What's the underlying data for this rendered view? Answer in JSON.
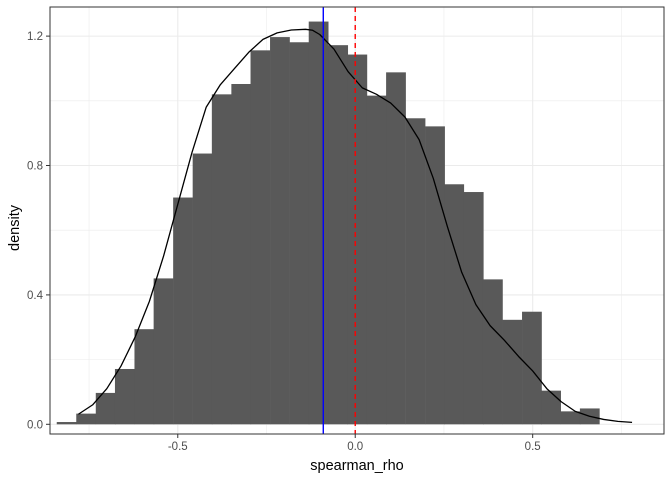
{
  "chart_data": {
    "type": "bar",
    "subtype": "histogram-with-density",
    "xlabel": "spearman_rho",
    "ylabel": "density",
    "xlim": [
      -0.86,
      0.87
    ],
    "ylim": [
      -0.03,
      1.29
    ],
    "x_ticks": [
      {
        "value": -0.5,
        "label": "-0.5"
      },
      {
        "value": 0.0,
        "label": "0.0"
      },
      {
        "value": 0.5,
        "label": "0.5"
      }
    ],
    "y_ticks": [
      {
        "value": 0.0,
        "label": "0.0"
      },
      {
        "value": 0.4,
        "label": "0.4"
      },
      {
        "value": 0.8,
        "label": "0.8"
      },
      {
        "value": 1.2,
        "label": "1.2"
      }
    ],
    "grid": true,
    "bin_width": 0.0546,
    "bins": [
      {
        "x0": -0.841,
        "y": 0.007
      },
      {
        "x0": -0.786,
        "y": 0.033
      },
      {
        "x0": -0.731,
        "y": 0.097
      },
      {
        "x0": -0.677,
        "y": 0.171
      },
      {
        "x0": -0.622,
        "y": 0.294
      },
      {
        "x0": -0.568,
        "y": 0.451
      },
      {
        "x0": -0.513,
        "y": 0.701
      },
      {
        "x0": -0.458,
        "y": 0.837
      },
      {
        "x0": -0.404,
        "y": 1.02
      },
      {
        "x0": -0.349,
        "y": 1.052
      },
      {
        "x0": -0.295,
        "y": 1.156
      },
      {
        "x0": -0.24,
        "y": 1.197
      },
      {
        "x0": -0.185,
        "y": 1.181
      },
      {
        "x0": -0.131,
        "y": 1.245
      },
      {
        "x0": -0.076,
        "y": 1.172
      },
      {
        "x0": -0.022,
        "y": 1.143
      },
      {
        "x0": 0.033,
        "y": 1.016
      },
      {
        "x0": 0.087,
        "y": 1.088
      },
      {
        "x0": 0.142,
        "y": 0.946
      },
      {
        "x0": 0.197,
        "y": 0.921
      },
      {
        "x0": 0.251,
        "y": 0.742
      },
      {
        "x0": 0.306,
        "y": 0.718
      },
      {
        "x0": 0.36,
        "y": 0.448
      },
      {
        "x0": 0.415,
        "y": 0.323
      },
      {
        "x0": 0.47,
        "y": 0.348
      },
      {
        "x0": 0.524,
        "y": 0.104
      },
      {
        "x0": 0.579,
        "y": 0.04
      },
      {
        "x0": 0.633,
        "y": 0.049
      }
    ],
    "density_curve": {
      "x": [
        -0.78,
        -0.74,
        -0.7,
        -0.66,
        -0.62,
        -0.58,
        -0.54,
        -0.5,
        -0.46,
        -0.42,
        -0.38,
        -0.34,
        -0.3,
        -0.26,
        -0.22,
        -0.18,
        -0.14,
        -0.12,
        -0.1,
        -0.06,
        -0.02,
        0.02,
        0.06,
        0.1,
        0.14,
        0.18,
        0.22,
        0.26,
        0.3,
        0.34,
        0.38,
        0.42,
        0.46,
        0.5,
        0.54,
        0.58,
        0.62,
        0.66,
        0.7,
        0.74,
        0.78
      ],
      "y": [
        0.031,
        0.06,
        0.11,
        0.18,
        0.27,
        0.38,
        0.52,
        0.68,
        0.84,
        0.98,
        1.05,
        1.1,
        1.15,
        1.19,
        1.21,
        1.219,
        1.221,
        1.218,
        1.205,
        1.16,
        1.09,
        1.04,
        1.02,
        0.993,
        0.95,
        0.88,
        0.76,
        0.61,
        0.47,
        0.37,
        0.305,
        0.26,
        0.21,
        0.165,
        0.11,
        0.07,
        0.04,
        0.025,
        0.015,
        0.009,
        0.006
      ]
    },
    "reference_lines": [
      {
        "x": -0.09,
        "color": "#0000FF",
        "style": "solid"
      },
      {
        "x": 0.0,
        "color": "#FF0000",
        "style": "dashed"
      }
    ],
    "colors": {
      "bar_fill": "#595959",
      "curve": "#000000",
      "grid": "#EBEBEB",
      "panel_border": "#333333",
      "axis_text": "#4D4D4D",
      "title_text": "#000000"
    }
  }
}
